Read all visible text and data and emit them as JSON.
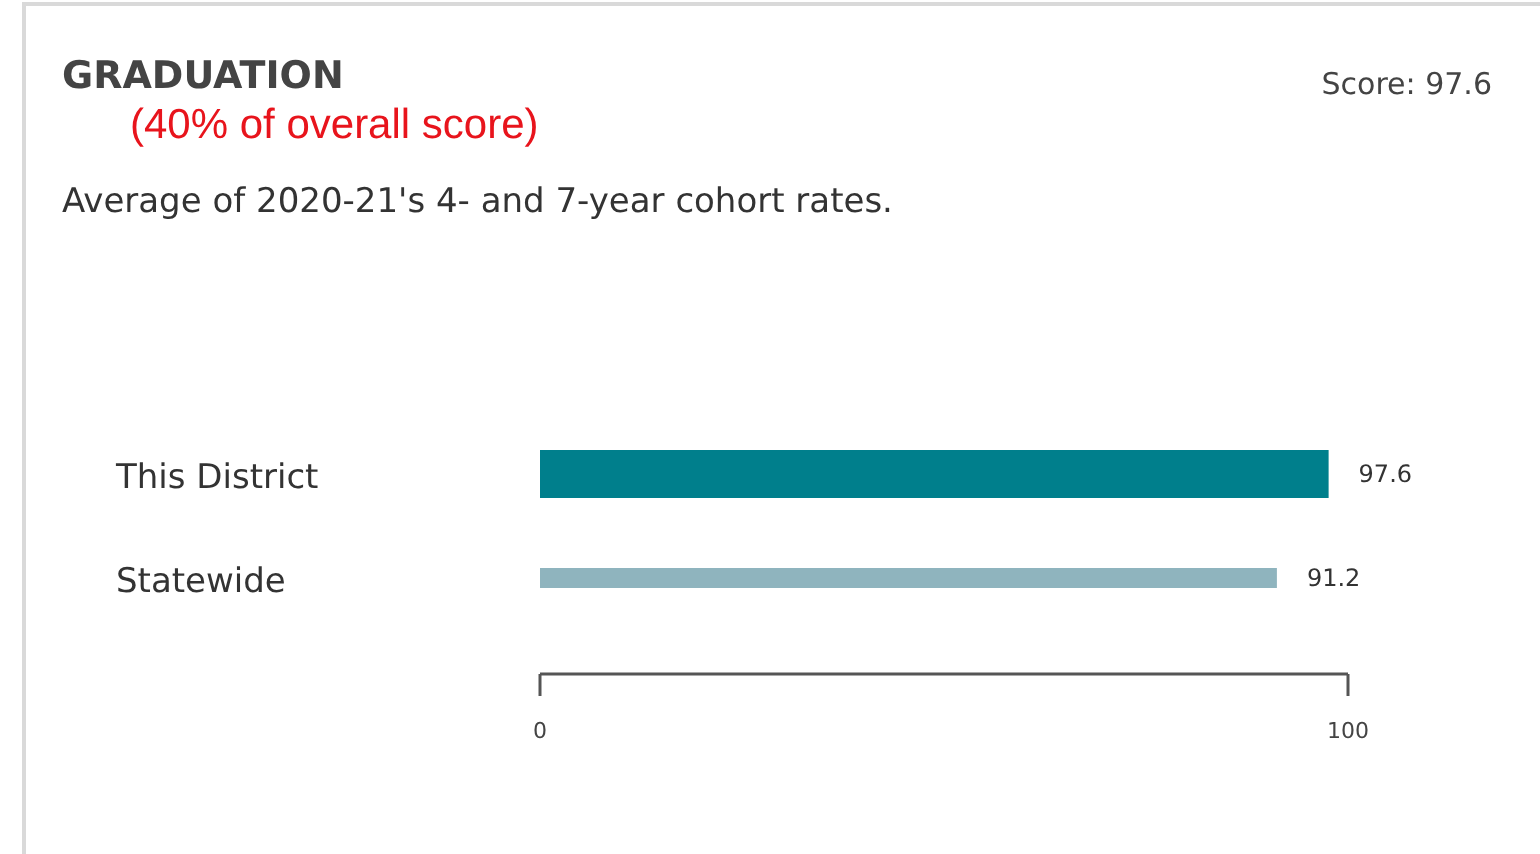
{
  "chart_data": {
    "type": "bar",
    "orientation": "horizontal",
    "title": "GRADUATION",
    "subtitle": "(40% of overall score)",
    "annotations": [
      "Score: 97.6",
      "Average of 2020-21's 4- and 7-year cohort rates."
    ],
    "categories": [
      "This District",
      "Statewide"
    ],
    "values": [
      97.6,
      91.2
    ],
    "colors": [
      "#007f8c",
      "#8fb4be"
    ],
    "xlim": [
      0,
      100
    ],
    "xticks": [
      0,
      100
    ],
    "data_labels": true,
    "grid": false
  }
}
